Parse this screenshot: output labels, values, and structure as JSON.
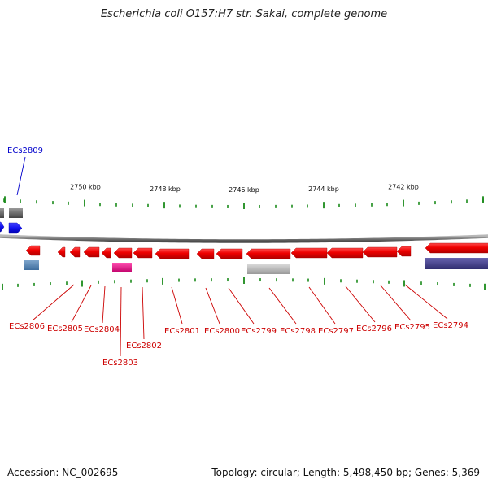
{
  "title": "Escherichia coli O157:H7 str. Sakai, complete genome",
  "footer": {
    "accession": "Accession: NC_002695",
    "summary": "Topology: circular; Length: 5,498,450 bp; Genes: 5,369"
  },
  "ticks": [
    {
      "label": "2750 kbp"
    },
    {
      "label": "2748 kbp"
    },
    {
      "label": "2746 kbp"
    },
    {
      "label": "2744 kbp"
    },
    {
      "label": "2742 kbp"
    }
  ],
  "colors": {
    "gene_red": "#ee0000",
    "gene_blue": "#1111ee",
    "backbone": "#808080",
    "tick_green": "#1a8a1a",
    "label_red": "#cc0000",
    "label_blue": "#0000cc",
    "steelblue": "#5b86b3",
    "magenta": "#e8108c",
    "gray_feature": "#b8b8b8",
    "navy": "#43408a"
  },
  "genes": [
    {
      "name": "ECs2809",
      "color": "blue"
    },
    {
      "name": "ECs2806",
      "color": "red"
    },
    {
      "name": "ECs2805",
      "color": "red"
    },
    {
      "name": "ECs2804",
      "color": "red"
    },
    {
      "name": "ECs2803",
      "color": "red"
    },
    {
      "name": "ECs2802",
      "color": "red"
    },
    {
      "name": "ECs2801",
      "color": "red"
    },
    {
      "name": "ECs2800",
      "color": "red"
    },
    {
      "name": "ECs2799",
      "color": "red"
    },
    {
      "name": "ECs2798",
      "color": "red"
    },
    {
      "name": "ECs2797",
      "color": "red"
    },
    {
      "name": "ECs2796",
      "color": "red"
    },
    {
      "name": "ECs2795",
      "color": "red"
    },
    {
      "name": "ECs2794",
      "color": "red"
    }
  ]
}
